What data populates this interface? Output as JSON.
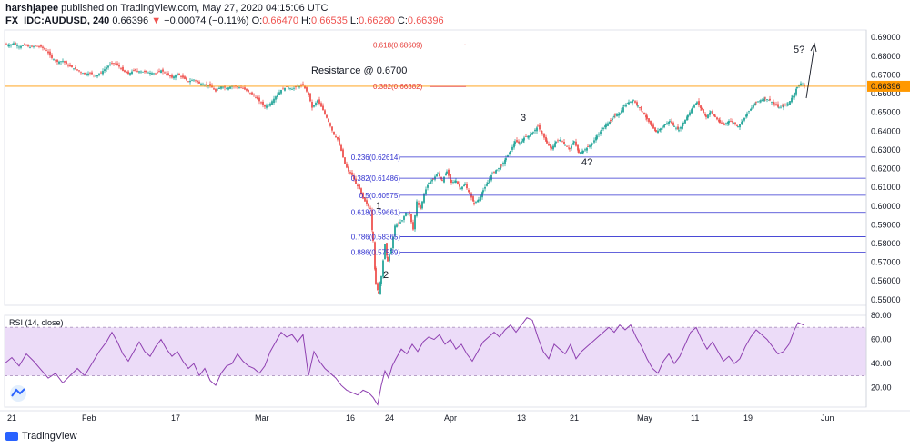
{
  "header": {
    "author": "harshjapee",
    "published": "published on TradingView.com, May 27, 2020 04:15:06 UTC",
    "symbol": "FX_IDC:AUDUSD, 240",
    "last": "0.66396",
    "arrow": "▼",
    "change": "−0.00074 (−0.11%)",
    "o_label": "O:",
    "o_val": "0.66470",
    "h_label": "H:",
    "h_val": "0.66535",
    "l_label": "L:",
    "l_val": "0.66280",
    "c_label": "C:",
    "c_val": "0.66396"
  },
  "footer": {
    "brand": "TradingView"
  },
  "colors": {
    "up": "#26a69a",
    "down": "#ef5350",
    "fib": "#3030d0",
    "fib_red": "#e53935",
    "rsi": "#8e3fb0",
    "rsi_band": "#ecdcf8",
    "price_line": "#ff9800"
  },
  "chart_data": [
    {
      "type": "candlestick",
      "symbol": "FX_IDC:AUDUSD",
      "timeframe": "240",
      "x_tick_labels": [
        "21",
        "Feb",
        "17",
        "Mar",
        "16",
        "24",
        "Apr",
        "13",
        "21",
        "May",
        "11",
        "19",
        "Jun"
      ],
      "y_tick_labels": [
        "0.69000",
        "0.68000",
        "0.67000",
        "0.66000",
        "0.65000",
        "0.64000",
        "0.63000",
        "0.62000",
        "0.61000",
        "0.60000",
        "0.59000",
        "0.58000",
        "0.57000",
        "0.56000",
        "0.55000"
      ],
      "ylim": [
        0.547,
        0.694
      ],
      "last_price_label": "0.66396",
      "close_path": [
        [
          0,
          0.6865
        ],
        [
          5,
          0.6858
        ],
        [
          10,
          0.687
        ],
        [
          16,
          0.685
        ],
        [
          22,
          0.686
        ],
        [
          28,
          0.6848
        ],
        [
          34,
          0.6855
        ],
        [
          40,
          0.685
        ],
        [
          46,
          0.683
        ],
        [
          52,
          0.679
        ],
        [
          58,
          0.677
        ],
        [
          64,
          0.6775
        ],
        [
          70,
          0.675
        ],
        [
          76,
          0.6735
        ],
        [
          82,
          0.672
        ],
        [
          88,
          0.6705
        ],
        [
          94,
          0.671
        ],
        [
          100,
          0.6695
        ],
        [
          106,
          0.6712
        ],
        [
          112,
          0.674
        ],
        [
          118,
          0.6765
        ],
        [
          124,
          0.6755
        ],
        [
          130,
          0.6722
        ],
        [
          136,
          0.6705
        ],
        [
          142,
          0.6725
        ],
        [
          148,
          0.672
        ],
        [
          154,
          0.6716
        ],
        [
          160,
          0.6712
        ],
        [
          166,
          0.6708
        ],
        [
          172,
          0.6725
        ],
        [
          178,
          0.6705
        ],
        [
          184,
          0.6685
        ],
        [
          190,
          0.6705
        ],
        [
          196,
          0.6685
        ],
        [
          202,
          0.6665
        ],
        [
          208,
          0.6675
        ],
        [
          214,
          0.6655
        ],
        [
          220,
          0.6648
        ],
        [
          226,
          0.6642
        ],
        [
          232,
          0.6612
        ],
        [
          238,
          0.664
        ],
        [
          244,
          0.6628
        ],
        [
          250,
          0.6642
        ],
        [
          256,
          0.6636
        ],
        [
          262,
          0.6628
        ],
        [
          268,
          0.661
        ],
        [
          274,
          0.659
        ],
        [
          280,
          0.656
        ],
        [
          286,
          0.653
        ],
        [
          292,
          0.6548
        ],
        [
          298,
          0.6585
        ],
        [
          304,
          0.662
        ],
        [
          310,
          0.6635
        ],
        [
          316,
          0.6625
        ],
        [
          322,
          0.664
        ],
        [
          328,
          0.6645
        ],
        [
          334,
          0.6595
        ],
        [
          338,
          0.6525
        ],
        [
          344,
          0.6565
        ],
        [
          350,
          0.6512
        ],
        [
          356,
          0.645
        ],
        [
          362,
          0.638
        ],
        [
          366,
          0.6355
        ],
        [
          370,
          0.6295
        ],
        [
          374,
          0.6225
        ],
        [
          378,
          0.6185
        ],
        [
          382,
          0.6165
        ],
        [
          386,
          0.612
        ],
        [
          390,
          0.609
        ],
        [
          394,
          0.604
        ],
        [
          398,
          0.601
        ],
        [
          402,
          0.5985
        ],
        [
          405,
          0.5815
        ],
        [
          408,
          0.5585
        ],
        [
          411,
          0.5535
        ],
        [
          414,
          0.5625
        ],
        [
          418,
          0.5795
        ],
        [
          421,
          0.5705
        ],
        [
          425,
          0.5775
        ],
        [
          429,
          0.5895
        ],
        [
          433,
          0.5905
        ],
        [
          437,
          0.5925
        ],
        [
          441,
          0.5965
        ],
        [
          445,
          0.5955
        ],
        [
          449,
          0.5875
        ],
        [
          453,
          0.6025
        ],
        [
          457,
          0.5985
        ],
        [
          461,
          0.6065
        ],
        [
          466,
          0.6125
        ],
        [
          471,
          0.6145
        ],
        [
          476,
          0.6175
        ],
        [
          481,
          0.6135
        ],
        [
          486,
          0.6185
        ],
        [
          491,
          0.6125
        ],
        [
          496,
          0.6135
        ],
        [
          501,
          0.6095
        ],
        [
          506,
          0.6115
        ],
        [
          511,
          0.6065
        ],
        [
          516,
          0.6015
        ],
        [
          521,
          0.6035
        ],
        [
          526,
          0.6085
        ],
        [
          531,
          0.6125
        ],
        [
          536,
          0.6175
        ],
        [
          541,
          0.6195
        ],
        [
          546,
          0.6215
        ],
        [
          551,
          0.6255
        ],
        [
          556,
          0.6295
        ],
        [
          561,
          0.6345
        ],
        [
          566,
          0.6335
        ],
        [
          571,
          0.6365
        ],
        [
          576,
          0.6375
        ],
        [
          581,
          0.6395
        ],
        [
          586,
          0.6425
        ],
        [
          591,
          0.6385
        ],
        [
          596,
          0.6335
        ],
        [
          601,
          0.6305
        ],
        [
          606,
          0.6345
        ],
        [
          611,
          0.6355
        ],
        [
          616,
          0.6325
        ],
        [
          621,
          0.6305
        ],
        [
          626,
          0.6345
        ],
        [
          631,
          0.6285
        ],
        [
          636,
          0.6295
        ],
        [
          641,
          0.6315
        ],
        [
          646,
          0.6335
        ],
        [
          651,
          0.6375
        ],
        [
          656,
          0.6405
        ],
        [
          661,
          0.6435
        ],
        [
          666,
          0.6455
        ],
        [
          671,
          0.6485
        ],
        [
          676,
          0.6495
        ],
        [
          681,
          0.6535
        ],
        [
          686,
          0.6555
        ],
        [
          691,
          0.6565
        ],
        [
          696,
          0.6535
        ],
        [
          701,
          0.6505
        ],
        [
          706,
          0.6465
        ],
        [
          711,
          0.6425
        ],
        [
          716,
          0.6395
        ],
        [
          721,
          0.6415
        ],
        [
          726,
          0.6435
        ],
        [
          731,
          0.6455
        ],
        [
          736,
          0.6425
        ],
        [
          741,
          0.6405
        ],
        [
          746,
          0.6445
        ],
        [
          751,
          0.6485
        ],
        [
          756,
          0.6525
        ],
        [
          761,
          0.6555
        ],
        [
          766,
          0.6515
        ],
        [
          771,
          0.6475
        ],
        [
          776,
          0.6505
        ],
        [
          781,
          0.6475
        ],
        [
          786,
          0.6445
        ],
        [
          791,
          0.6435
        ],
        [
          796,
          0.6455
        ],
        [
          801,
          0.6445
        ],
        [
          806,
          0.6425
        ],
        [
          811,
          0.6455
        ],
        [
          816,
          0.6495
        ],
        [
          821,
          0.6525
        ],
        [
          826,
          0.6555
        ],
        [
          831,
          0.6565
        ],
        [
          836,
          0.6575
        ],
        [
          841,
          0.6565
        ],
        [
          846,
          0.6545
        ],
        [
          851,
          0.6525
        ],
        [
          856,
          0.6535
        ],
        [
          861,
          0.6545
        ],
        [
          866,
          0.6585
        ],
        [
          871,
          0.6635
        ],
        [
          875,
          0.6655
        ],
        [
          879,
          0.6642
        ]
      ],
      "annotations": {
        "resistance": "Resistance @ 0.6700",
        "wave_1": "1",
        "wave_2": "2",
        "wave_3": "3",
        "wave_4": "4?",
        "wave_5": "5?"
      },
      "fib_levels": [
        {
          "label": "0.618(0.68609)",
          "value": 0.68609,
          "color": "red"
        },
        {
          "label": "0.382(0.66382)",
          "value": 0.66382,
          "color": "red"
        },
        {
          "label": "0.236(0.62614)",
          "value": 0.62614,
          "color": "blue"
        },
        {
          "label": "0.382(0.61486)",
          "value": 0.61486,
          "color": "blue"
        },
        {
          "label": "0.5(0.60575)",
          "value": 0.60575,
          "color": "blue"
        },
        {
          "label": "0.618(0.59661)",
          "value": 0.59661,
          "color": "blue"
        },
        {
          "label": "0.786(0.58365)",
          "value": 0.58365,
          "color": "blue"
        },
        {
          "label": "0.886(0.57539)",
          "value": 0.57539,
          "color": "blue"
        }
      ]
    },
    {
      "type": "line",
      "title": "RSI (14, close)",
      "y_tick_labels": [
        "80.00",
        "60.00",
        "40.00",
        "20.00"
      ],
      "ylim": [
        4,
        80
      ],
      "band": [
        30,
        70
      ],
      "rsi_path": [
        [
          0,
          40
        ],
        [
          8,
          45
        ],
        [
          16,
          38
        ],
        [
          24,
          48
        ],
        [
          32,
          42
        ],
        [
          40,
          35
        ],
        [
          48,
          28
        ],
        [
          56,
          32
        ],
        [
          64,
          24
        ],
        [
          72,
          30
        ],
        [
          80,
          36
        ],
        [
          88,
          30
        ],
        [
          96,
          40
        ],
        [
          104,
          50
        ],
        [
          112,
          58
        ],
        [
          118,
          66
        ],
        [
          124,
          58
        ],
        [
          130,
          48
        ],
        [
          136,
          42
        ],
        [
          142,
          50
        ],
        [
          148,
          58
        ],
        [
          154,
          50
        ],
        [
          160,
          46
        ],
        [
          166,
          54
        ],
        [
          172,
          60
        ],
        [
          178,
          52
        ],
        [
          184,
          46
        ],
        [
          190,
          50
        ],
        [
          196,
          42
        ],
        [
          202,
          36
        ],
        [
          208,
          40
        ],
        [
          214,
          30
        ],
        [
          220,
          36
        ],
        [
          226,
          26
        ],
        [
          232,
          22
        ],
        [
          238,
          32
        ],
        [
          244,
          38
        ],
        [
          250,
          40
        ],
        [
          256,
          48
        ],
        [
          262,
          42
        ],
        [
          268,
          38
        ],
        [
          274,
          36
        ],
        [
          280,
          32
        ],
        [
          286,
          38
        ],
        [
          292,
          50
        ],
        [
          298,
          58
        ],
        [
          304,
          66
        ],
        [
          310,
          62
        ],
        [
          316,
          64
        ],
        [
          322,
          58
        ],
        [
          328,
          64
        ],
        [
          334,
          30
        ],
        [
          340,
          50
        ],
        [
          346,
          42
        ],
        [
          352,
          36
        ],
        [
          358,
          32
        ],
        [
          364,
          28
        ],
        [
          370,
          22
        ],
        [
          376,
          18
        ],
        [
          382,
          16
        ],
        [
          388,
          14
        ],
        [
          394,
          18
        ],
        [
          400,
          16
        ],
        [
          405,
          12
        ],
        [
          410,
          6
        ],
        [
          414,
          22
        ],
        [
          418,
          34
        ],
        [
          422,
          28
        ],
        [
          426,
          38
        ],
        [
          430,
          44
        ],
        [
          436,
          52
        ],
        [
          442,
          48
        ],
        [
          448,
          56
        ],
        [
          454,
          50
        ],
        [
          460,
          58
        ],
        [
          466,
          62
        ],
        [
          472,
          60
        ],
        [
          478,
          64
        ],
        [
          484,
          56
        ],
        [
          490,
          60
        ],
        [
          496,
          52
        ],
        [
          502,
          56
        ],
        [
          508,
          48
        ],
        [
          514,
          42
        ],
        [
          520,
          50
        ],
        [
          526,
          58
        ],
        [
          532,
          62
        ],
        [
          538,
          66
        ],
        [
          544,
          62
        ],
        [
          550,
          68
        ],
        [
          556,
          72
        ],
        [
          562,
          66
        ],
        [
          568,
          72
        ],
        [
          574,
          78
        ],
        [
          580,
          76
        ],
        [
          586,
          62
        ],
        [
          592,
          50
        ],
        [
          598,
          44
        ],
        [
          604,
          56
        ],
        [
          610,
          52
        ],
        [
          616,
          48
        ],
        [
          622,
          56
        ],
        [
          628,
          44
        ],
        [
          634,
          50
        ],
        [
          640,
          54
        ],
        [
          646,
          58
        ],
        [
          652,
          62
        ],
        [
          658,
          66
        ],
        [
          664,
          70
        ],
        [
          670,
          66
        ],
        [
          676,
          72
        ],
        [
          682,
          68
        ],
        [
          688,
          72
        ],
        [
          694,
          62
        ],
        [
          700,
          54
        ],
        [
          706,
          44
        ],
        [
          712,
          36
        ],
        [
          718,
          32
        ],
        [
          724,
          42
        ],
        [
          730,
          48
        ],
        [
          736,
          40
        ],
        [
          742,
          46
        ],
        [
          748,
          56
        ],
        [
          754,
          66
        ],
        [
          760,
          70
        ],
        [
          766,
          60
        ],
        [
          772,
          52
        ],
        [
          778,
          58
        ],
        [
          784,
          50
        ],
        [
          790,
          42
        ],
        [
          796,
          46
        ],
        [
          802,
          40
        ],
        [
          808,
          44
        ],
        [
          814,
          54
        ],
        [
          820,
          62
        ],
        [
          826,
          68
        ],
        [
          832,
          64
        ],
        [
          838,
          60
        ],
        [
          844,
          54
        ],
        [
          850,
          48
        ],
        [
          856,
          50
        ],
        [
          862,
          56
        ],
        [
          868,
          68
        ],
        [
          872,
          74
        ],
        [
          878,
          72
        ]
      ]
    }
  ]
}
